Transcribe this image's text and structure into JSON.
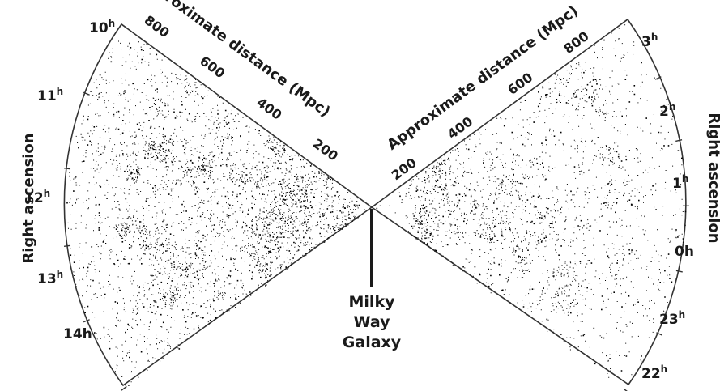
{
  "diagram": {
    "left_wedge": {
      "ra_axis_title": "Right ascension",
      "ra_labels": [
        {
          "hour": "10",
          "unit": "h"
        },
        {
          "hour": "11",
          "unit": "h"
        },
        {
          "hour": "12",
          "unit": "h"
        },
        {
          "hour": "13",
          "unit": "h"
        },
        {
          "hour": "14",
          "unit": "h"
        }
      ],
      "distance_axis_title": "Approximate distance (Mpc)",
      "distance_ticks": [
        "200",
        "400",
        "600",
        "800"
      ]
    },
    "right_wedge": {
      "ra_axis_title": "Right ascension",
      "ra_labels": [
        {
          "hour": "3",
          "unit": "h"
        },
        {
          "hour": "2",
          "unit": "h"
        },
        {
          "hour": "1",
          "unit": "h"
        },
        {
          "hour": "0",
          "unit": "h"
        },
        {
          "hour": "23",
          "unit": "h"
        },
        {
          "hour": "22",
          "unit": "h"
        }
      ],
      "distance_axis_title": "Approximate distance (Mpc)",
      "distance_ticks": [
        "200",
        "400",
        "600",
        "800"
      ]
    },
    "center_label": [
      "Milky",
      "Way",
      "Galaxy"
    ],
    "colors": {
      "galaxies": "#000000",
      "background": "#ffffff",
      "outline": "#333333"
    }
  }
}
